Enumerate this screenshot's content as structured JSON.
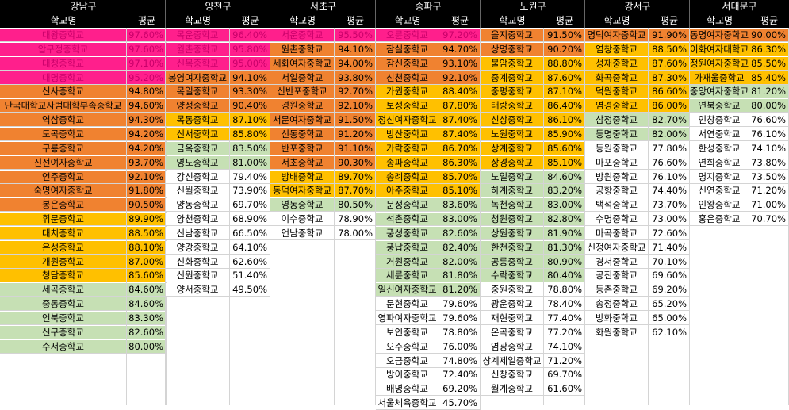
{
  "legend_colors": {
    "pink": "#ff1f8c",
    "orange": "#f08230",
    "yellow": "#ffc000",
    "green": "#c6e0b4"
  },
  "header": {
    "school_label": "학교명",
    "avg_label": "평균"
  },
  "districts": [
    {
      "name": "강남구",
      "rows": [
        {
          "school": "대왕중학교",
          "avg": "97.60%",
          "color": "pink"
        },
        {
          "school": "압구정중학교",
          "avg": "97.60%",
          "color": "pink"
        },
        {
          "school": "대청중학교",
          "avg": "97.10%",
          "color": "pink"
        },
        {
          "school": "대명중학교",
          "avg": "95.20%",
          "color": "pink"
        },
        {
          "school": "신사중학교",
          "avg": "94.80%",
          "color": "orange"
        },
        {
          "school": "단국대학교사범대학부속중학교",
          "avg": "94.60%",
          "color": "orange"
        },
        {
          "school": "역삼중학교",
          "avg": "94.30%",
          "color": "orange"
        },
        {
          "school": "도곡중학교",
          "avg": "94.20%",
          "color": "orange"
        },
        {
          "school": "구룡중학교",
          "avg": "94.20%",
          "color": "orange"
        },
        {
          "school": "진선여자중학교",
          "avg": "93.70%",
          "color": "orange"
        },
        {
          "school": "언주중학교",
          "avg": "92.10%",
          "color": "orange"
        },
        {
          "school": "숙명여자중학교",
          "avg": "91.80%",
          "color": "orange"
        },
        {
          "school": "봉은중학교",
          "avg": "90.50%",
          "color": "orange"
        },
        {
          "school": "휘문중학교",
          "avg": "89.90%",
          "color": "yellow"
        },
        {
          "school": "대치중학교",
          "avg": "88.50%",
          "color": "yellow"
        },
        {
          "school": "은성중학교",
          "avg": "88.10%",
          "color": "yellow"
        },
        {
          "school": "개원중학교",
          "avg": "87.00%",
          "color": "yellow"
        },
        {
          "school": "청담중학교",
          "avg": "85.60%",
          "color": "yellow"
        },
        {
          "school": "세곡중학교",
          "avg": "84.60%",
          "color": "green"
        },
        {
          "school": "중동중학교",
          "avg": "84.60%",
          "color": "green"
        },
        {
          "school": "언북중학교",
          "avg": "83.30%",
          "color": "green"
        },
        {
          "school": "신구중학교",
          "avg": "82.60%",
          "color": "green"
        },
        {
          "school": "수서중학교",
          "avg": "80.00%",
          "color": "green"
        }
      ]
    },
    {
      "name": "양천구",
      "rows": [
        {
          "school": "목운중학교",
          "avg": "96.40%",
          "color": "pink"
        },
        {
          "school": "월촌중학교",
          "avg": "95.80%",
          "color": "pink"
        },
        {
          "school": "신목중학교",
          "avg": "95.00%",
          "color": "pink"
        },
        {
          "school": "봉영여자중학교",
          "avg": "94.10%",
          "color": "orange"
        },
        {
          "school": "목일중학교",
          "avg": "93.30%",
          "color": "orange"
        },
        {
          "school": "양정중학교",
          "avg": "90.40%",
          "color": "orange"
        },
        {
          "school": "목동중학교",
          "avg": "87.10%",
          "color": "yellow"
        },
        {
          "school": "신서중학교",
          "avg": "85.80%",
          "color": "yellow"
        },
        {
          "school": "금옥중학교",
          "avg": "83.50%",
          "color": "green"
        },
        {
          "school": "영도중학교",
          "avg": "81.00%",
          "color": "green"
        },
        {
          "school": "강신중학교",
          "avg": "79.40%",
          "color": "none"
        },
        {
          "school": "신월중학교",
          "avg": "73.90%",
          "color": "none"
        },
        {
          "school": "양동중학교",
          "avg": "69.70%",
          "color": "none"
        },
        {
          "school": "양천중학교",
          "avg": "68.90%",
          "color": "none"
        },
        {
          "school": "신남중학교",
          "avg": "66.50%",
          "color": "none"
        },
        {
          "school": "양강중학교",
          "avg": "64.10%",
          "color": "none"
        },
        {
          "school": "신화중학교",
          "avg": "62.60%",
          "color": "none"
        },
        {
          "school": "신원중학교",
          "avg": "51.40%",
          "color": "none"
        },
        {
          "school": "양서중학교",
          "avg": "49.50%",
          "color": "none"
        }
      ]
    },
    {
      "name": "서초구",
      "rows": [
        {
          "school": "서운중학교",
          "avg": "95.50%",
          "color": "pink"
        },
        {
          "school": "원촌중학교",
          "avg": "94.10%",
          "color": "orange"
        },
        {
          "school": "세화여자중학교",
          "avg": "94.00%",
          "color": "orange"
        },
        {
          "school": "서일중학교",
          "avg": "93.80%",
          "color": "orange"
        },
        {
          "school": "신반포중학교",
          "avg": "92.70%",
          "color": "orange"
        },
        {
          "school": "경원중학교",
          "avg": "92.10%",
          "color": "orange"
        },
        {
          "school": "서문여자중학교",
          "avg": "91.50%",
          "color": "orange"
        },
        {
          "school": "신동중학교",
          "avg": "91.20%",
          "color": "orange"
        },
        {
          "school": "반포중학교",
          "avg": "91.10%",
          "color": "orange"
        },
        {
          "school": "서초중학교",
          "avg": "90.30%",
          "color": "orange"
        },
        {
          "school": "방배중학교",
          "avg": "89.70%",
          "color": "yellow"
        },
        {
          "school": "동덕여자중학교",
          "avg": "87.70%",
          "color": "yellow"
        },
        {
          "school": "영동중학교",
          "avg": "80.50%",
          "color": "green"
        },
        {
          "school": "이수중학교",
          "avg": "78.90%",
          "color": "none"
        },
        {
          "school": "언남중학교",
          "avg": "78.00%",
          "color": "none"
        }
      ]
    },
    {
      "name": "송파구",
      "rows": [
        {
          "school": "오륜중학교",
          "avg": "97.20%",
          "color": "pink"
        },
        {
          "school": "잠실중학교",
          "avg": "94.70%",
          "color": "orange"
        },
        {
          "school": "잠신중학교",
          "avg": "93.10%",
          "color": "orange"
        },
        {
          "school": "신천중학교",
          "avg": "92.10%",
          "color": "orange"
        },
        {
          "school": "가원중학교",
          "avg": "88.40%",
          "color": "yellow"
        },
        {
          "school": "보성중학교",
          "avg": "87.80%",
          "color": "yellow"
        },
        {
          "school": "정신여자중학교",
          "avg": "87.40%",
          "color": "yellow"
        },
        {
          "school": "방산중학교",
          "avg": "87.40%",
          "color": "yellow"
        },
        {
          "school": "가락중학교",
          "avg": "86.70%",
          "color": "yellow"
        },
        {
          "school": "송파중학교",
          "avg": "86.30%",
          "color": "yellow"
        },
        {
          "school": "송례중학교",
          "avg": "85.70%",
          "color": "yellow"
        },
        {
          "school": "아주중학교",
          "avg": "85.10%",
          "color": "yellow"
        },
        {
          "school": "문정중학교",
          "avg": "83.60%",
          "color": "green"
        },
        {
          "school": "석촌중학교",
          "avg": "83.00%",
          "color": "green"
        },
        {
          "school": "풍성중학교",
          "avg": "82.60%",
          "color": "green"
        },
        {
          "school": "풍납중학교",
          "avg": "82.40%",
          "color": "green"
        },
        {
          "school": "거원중학교",
          "avg": "82.00%",
          "color": "green"
        },
        {
          "school": "세륜중학교",
          "avg": "81.80%",
          "color": "green"
        },
        {
          "school": "일신여자중학교",
          "avg": "81.20%",
          "color": "green"
        },
        {
          "school": "문현중학교",
          "avg": "79.60%",
          "color": "none"
        },
        {
          "school": "영파여자중학교",
          "avg": "79.60%",
          "color": "none"
        },
        {
          "school": "보인중학교",
          "avg": "78.80%",
          "color": "none"
        },
        {
          "school": "오주중학교",
          "avg": "76.00%",
          "color": "none"
        },
        {
          "school": "오금중학교",
          "avg": "74.80%",
          "color": "none"
        },
        {
          "school": "방이중학교",
          "avg": "72.40%",
          "color": "none"
        },
        {
          "school": "배명중학교",
          "avg": "69.20%",
          "color": "none"
        },
        {
          "school": "서울체육중학교",
          "avg": "45.70%",
          "color": "none"
        }
      ]
    },
    {
      "name": "노원구",
      "rows": [
        {
          "school": "을지중학교",
          "avg": "91.50%",
          "color": "orange"
        },
        {
          "school": "상명중학교",
          "avg": "90.20%",
          "color": "orange"
        },
        {
          "school": "불암중학교",
          "avg": "88.80%",
          "color": "yellow"
        },
        {
          "school": "중계중학교",
          "avg": "87.60%",
          "color": "yellow"
        },
        {
          "school": "중평중학교",
          "avg": "87.10%",
          "color": "yellow"
        },
        {
          "school": "태랑중학교",
          "avg": "86.40%",
          "color": "yellow"
        },
        {
          "school": "신상중학교",
          "avg": "86.10%",
          "color": "yellow"
        },
        {
          "school": "노원중학교",
          "avg": "85.90%",
          "color": "yellow"
        },
        {
          "school": "상계중학교",
          "avg": "85.60%",
          "color": "yellow"
        },
        {
          "school": "상경중학교",
          "avg": "85.10%",
          "color": "yellow"
        },
        {
          "school": "노일중학교",
          "avg": "84.60%",
          "color": "green"
        },
        {
          "school": "하계중학교",
          "avg": "83.20%",
          "color": "green"
        },
        {
          "school": "녹천중학교",
          "avg": "83.00%",
          "color": "green"
        },
        {
          "school": "청원중학교",
          "avg": "82.80%",
          "color": "green"
        },
        {
          "school": "상원중학교",
          "avg": "81.90%",
          "color": "green"
        },
        {
          "school": "한천중학교",
          "avg": "81.30%",
          "color": "green"
        },
        {
          "school": "공릉중학교",
          "avg": "80.90%",
          "color": "green"
        },
        {
          "school": "수락중학교",
          "avg": "80.40%",
          "color": "green"
        },
        {
          "school": "중원중학교",
          "avg": "78.80%",
          "color": "none"
        },
        {
          "school": "광운중학교",
          "avg": "78.40%",
          "color": "none"
        },
        {
          "school": "재현중학교",
          "avg": "77.40%",
          "color": "none"
        },
        {
          "school": "온곡중학교",
          "avg": "77.20%",
          "color": "none"
        },
        {
          "school": "염광중학교",
          "avg": "74.10%",
          "color": "none"
        },
        {
          "school": "상계제일중학교",
          "avg": "71.20%",
          "color": "none"
        },
        {
          "school": "신창중학교",
          "avg": "69.70%",
          "color": "none"
        },
        {
          "school": "월계중학교",
          "avg": "61.60%",
          "color": "none"
        }
      ]
    },
    {
      "name": "강서구",
      "rows": [
        {
          "school": "명덕여자중학교",
          "avg": "91.90%",
          "color": "orange"
        },
        {
          "school": "염창중학교",
          "avg": "88.50%",
          "color": "yellow"
        },
        {
          "school": "성재중학교",
          "avg": "87.60%",
          "color": "yellow"
        },
        {
          "school": "화곡중학교",
          "avg": "87.30%",
          "color": "yellow"
        },
        {
          "school": "덕원중학교",
          "avg": "86.60%",
          "color": "yellow"
        },
        {
          "school": "염경중학교",
          "avg": "86.00%",
          "color": "yellow"
        },
        {
          "school": "삼정중학교",
          "avg": "82.70%",
          "color": "green"
        },
        {
          "school": "등명중학교",
          "avg": "82.00%",
          "color": "green"
        },
        {
          "school": "등원중학교",
          "avg": "77.80%",
          "color": "none"
        },
        {
          "school": "마포중학교",
          "avg": "76.60%",
          "color": "none"
        },
        {
          "school": "방원중학교",
          "avg": "76.10%",
          "color": "none"
        },
        {
          "school": "공항중학교",
          "avg": "74.40%",
          "color": "none"
        },
        {
          "school": "백석중학교",
          "avg": "73.70%",
          "color": "none"
        },
        {
          "school": "수명중학교",
          "avg": "73.00%",
          "color": "none"
        },
        {
          "school": "마곡중학교",
          "avg": "72.60%",
          "color": "none"
        },
        {
          "school": "신정여자중학교",
          "avg": "71.40%",
          "color": "none"
        },
        {
          "school": "경서중학교",
          "avg": "70.10%",
          "color": "none"
        },
        {
          "school": "공진중학교",
          "avg": "69.60%",
          "color": "none"
        },
        {
          "school": "등촌중학교",
          "avg": "69.20%",
          "color": "none"
        },
        {
          "school": "송정중학교",
          "avg": "65.20%",
          "color": "none"
        },
        {
          "school": "방화중학교",
          "avg": "65.00%",
          "color": "none"
        },
        {
          "school": "화원중학교",
          "avg": "62.10%",
          "color": "none"
        }
      ]
    },
    {
      "name": "서대문구",
      "rows": [
        {
          "school": "동명여자중학교",
          "avg": "90.00%",
          "color": "orange"
        },
        {
          "school": "이화여자대학교사범대학부속이화여자중학교",
          "avg": "86.30%",
          "color": "yellow"
        },
        {
          "school": "정원여자중학교",
          "avg": "85.50%",
          "color": "yellow"
        },
        {
          "school": "가재울중학교",
          "avg": "85.40%",
          "color": "yellow"
        },
        {
          "school": "중앙여자중학교",
          "avg": "81.20%",
          "color": "green"
        },
        {
          "school": "연북중학교",
          "avg": "80.00%",
          "color": "green"
        },
        {
          "school": "인창중학교",
          "avg": "76.60%",
          "color": "none"
        },
        {
          "school": "서연중학교",
          "avg": "76.10%",
          "color": "none"
        },
        {
          "school": "한성중학교",
          "avg": "74.10%",
          "color": "none"
        },
        {
          "school": "연희중학교",
          "avg": "73.80%",
          "color": "none"
        },
        {
          "school": "명지중학교",
          "avg": "73.50%",
          "color": "none"
        },
        {
          "school": "신연중학교",
          "avg": "71.20%",
          "color": "none"
        },
        {
          "school": "인왕중학교",
          "avg": "71.00%",
          "color": "none"
        },
        {
          "school": "홍은중학교",
          "avg": "70.70%",
          "color": "none"
        }
      ]
    }
  ]
}
